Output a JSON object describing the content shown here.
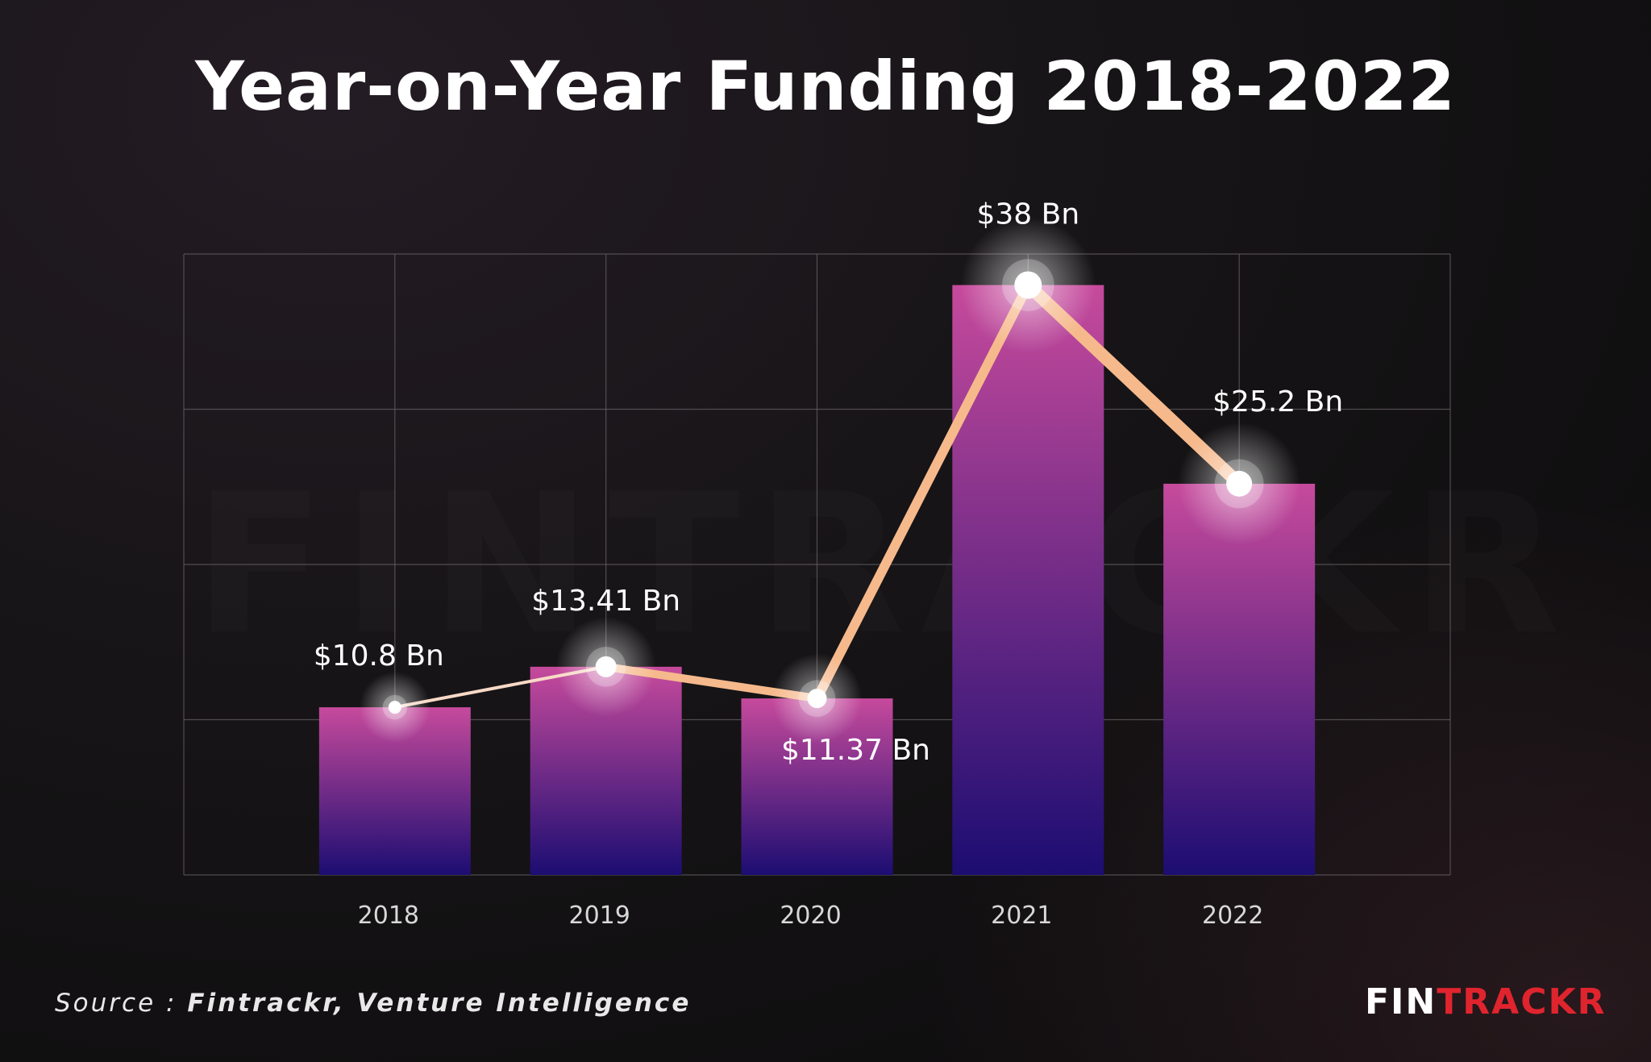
{
  "title": "Year-on-Year Funding 2018-2022",
  "source": {
    "prefix": "Source : ",
    "text": "Fintrackr, Venture Intelligence"
  },
  "logo": {
    "part1": "FIN",
    "part2": "TRACKR"
  },
  "watermark": "FINTRACKR",
  "colors": {
    "bar_top": "#c64a9c",
    "bar_bottom": "#1c0d72",
    "line": "#f6b98c",
    "grid": "#6a6468",
    "text": "#ffffff",
    "logo_red": "#e0242e"
  },
  "chart_data": {
    "type": "bar",
    "categories": [
      "2018",
      "2019",
      "2020",
      "2021",
      "2022"
    ],
    "values": [
      10.8,
      13.41,
      11.37,
      38,
      25.2
    ],
    "data_labels": [
      "$10.8 Bn",
      "$13.41 Bn",
      "$11.37 Bn",
      "$38 Bn",
      "$25.2 Bn"
    ],
    "overlay_line": true,
    "ylim": [
      0,
      40
    ],
    "grid": true,
    "legend": false,
    "xlabel": "",
    "ylabel": ""
  }
}
